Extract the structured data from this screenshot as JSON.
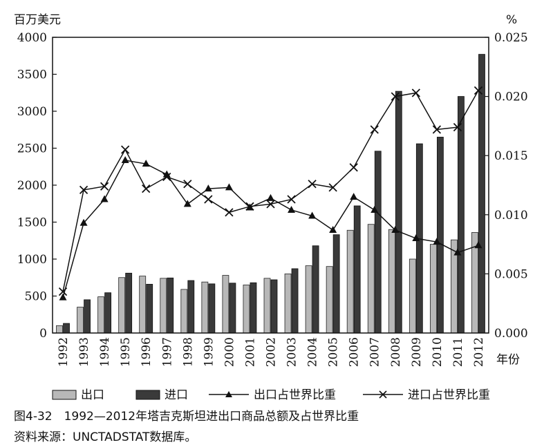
{
  "chart_data": {
    "type": "bar",
    "y_left_title": "百万美元",
    "y_right_title": "%",
    "x_unit": "年份",
    "ylim_left": [
      0,
      4000
    ],
    "ylim_right": [
      0,
      0.025
    ],
    "y_left_ticks": [
      "0",
      "500",
      "1000",
      "1500",
      "2000",
      "2500",
      "3000",
      "3500",
      "4000"
    ],
    "y_right_ticks": [
      "0.000",
      "0.005",
      "0.010",
      "0.015",
      "0.020",
      "0.025"
    ],
    "categories": [
      "1992",
      "1993",
      "1994",
      "1995",
      "1996",
      "1997",
      "1998",
      "1999",
      "2000",
      "2001",
      "2002",
      "2003",
      "2004",
      "2005",
      "2006",
      "2007",
      "2008",
      "2009",
      "2010",
      "2011",
      "2012"
    ],
    "series": [
      {
        "name": "出口",
        "kind": "bar",
        "axis": "left",
        "color": "#b8b8b8",
        "values": [
          100,
          350,
          490,
          750,
          770,
          740,
          590,
          690,
          780,
          650,
          740,
          800,
          910,
          900,
          1390,
          1470,
          1400,
          1000,
          1200,
          1260,
          1360
        ]
      },
      {
        "name": "进口",
        "kind": "bar",
        "axis": "left",
        "color": "#3a3a3a",
        "values": [
          130,
          450,
          545,
          810,
          660,
          745,
          710,
          665,
          675,
          680,
          720,
          870,
          1180,
          1330,
          1720,
          2460,
          3270,
          2560,
          2650,
          3200,
          3770
        ]
      },
      {
        "name": "出口占世界比重",
        "kind": "line",
        "marker": "triangle",
        "axis": "right",
        "values": [
          0.003,
          0.0093,
          0.0113,
          0.0146,
          0.0143,
          0.0134,
          0.0109,
          0.0122,
          0.0123,
          0.0106,
          0.0114,
          0.0104,
          0.0099,
          0.0087,
          0.0115,
          0.0104,
          0.0087,
          0.008,
          0.0077,
          0.0068,
          0.0074
        ]
      },
      {
        "name": "进口占世界比重",
        "kind": "line",
        "marker": "x",
        "axis": "right",
        "values": [
          0.0035,
          0.0121,
          0.0124,
          0.0155,
          0.0122,
          0.0132,
          0.0126,
          0.0113,
          0.0102,
          0.0107,
          0.0109,
          0.0113,
          0.0126,
          0.0123,
          0.014,
          0.0172,
          0.02,
          0.0203,
          0.0172,
          0.0174,
          0.0205
        ]
      }
    ],
    "grid": false,
    "legend_position": "bottom"
  },
  "caption": {
    "figure": "图4-32　1992—2012年塔吉克斯坦进出口商品总额及占世界比重",
    "source": "资料来源：UNCTADSTAT数据库。"
  }
}
